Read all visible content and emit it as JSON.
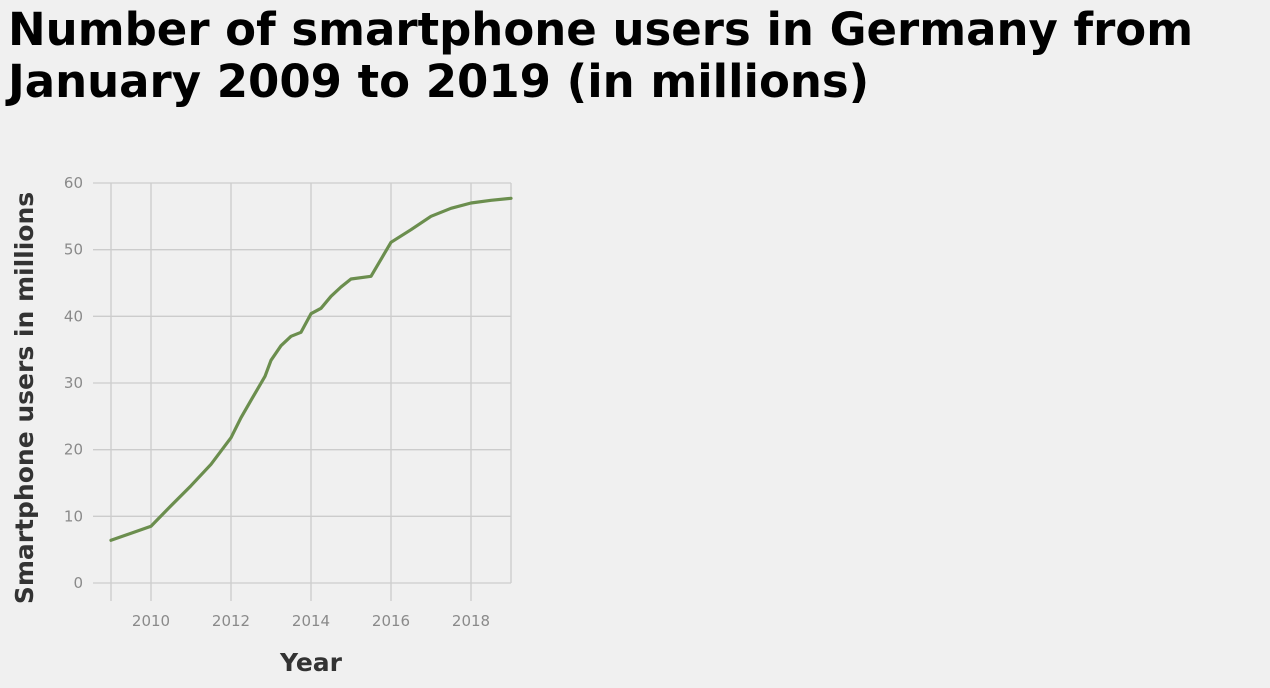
{
  "chart_data": {
    "type": "line",
    "title": "Number of smartphone users in Germany from January 2009 to 2019 (in millions)",
    "xlabel": "Year",
    "ylabel": "Smartphone users in millions",
    "xlim": [
      2009,
      2019
    ],
    "ylim": [
      0,
      60
    ],
    "xticks": [
      2010,
      2012,
      2014,
      2016,
      2018
    ],
    "yticks": [
      0,
      10,
      20,
      30,
      40,
      50,
      60
    ],
    "grid": true,
    "legend": "none",
    "line_color": "#6b8e4e",
    "series": [
      {
        "x": [
          2009.0,
          2010.0,
          2010.5,
          2011.0,
          2011.5,
          2012.0,
          2012.25,
          2012.5,
          2012.85,
          2013.0,
          2013.25,
          2013.5,
          2013.75,
          2014.0,
          2014.25,
          2014.5,
          2014.75,
          2015.0,
          2015.5,
          2016.0,
          2016.5,
          2017.0,
          2017.5,
          2018.0,
          2018.5,
          2019.0
        ],
        "y": [
          6.4,
          8.5,
          11.6,
          14.6,
          17.8,
          21.8,
          24.8,
          27.4,
          31.0,
          33.4,
          35.6,
          37.0,
          37.6,
          40.4,
          41.2,
          43.0,
          44.4,
          45.6,
          46.0,
          51.1,
          53.0,
          55.0,
          56.2,
          57.0,
          57.4,
          57.7
        ]
      }
    ]
  }
}
